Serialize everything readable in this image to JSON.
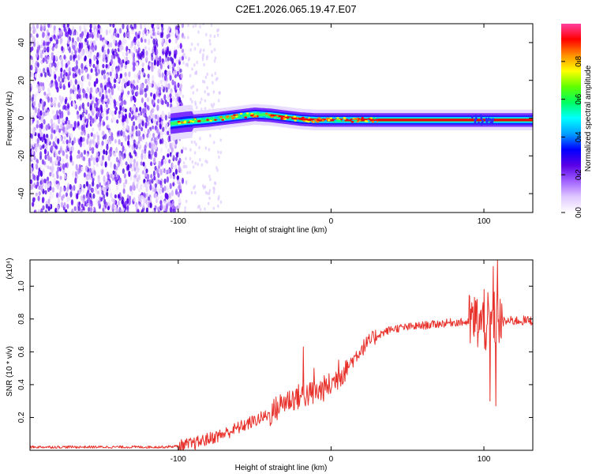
{
  "page_title": "C2E1.2026.065.19.47.E07",
  "colors": {
    "snr_line": "#e8302a",
    "ridge_core": "#e8000e",
    "axis": "#000000"
  },
  "chart_data": [
    {
      "type": "heatmap",
      "title": "C2E1.2026.065.19.47.E07",
      "xlabel": "Height of straight line (km)",
      "ylabel": "Frequency (Hz)",
      "xlim": [
        -197,
        132
      ],
      "ylim": [
        -50,
        50
      ],
      "x_ticks": [
        -100,
        0,
        100
      ],
      "x_tick_labels": [
        "-100",
        "0",
        "100"
      ],
      "y_ticks": [
        -40,
        -20,
        0,
        20,
        40
      ],
      "y_tick_labels": [
        "-40",
        "-20",
        "0",
        "20",
        "40"
      ],
      "colorbar": {
        "label": "Normalized spectral amplitude",
        "range": [
          0,
          1
        ],
        "ticks": [
          0.0,
          0.2,
          0.4,
          0.6,
          0.8
        ],
        "tick_labels": [
          "0.0",
          "0.2",
          "0.4",
          "0.6",
          "0.8"
        ],
        "stops": [
          "#ffffff",
          "#e0c8ff",
          "#a060ff",
          "#5a00e6",
          "#0000ff",
          "#00a0ff",
          "#00ffff",
          "#00ff60",
          "#60ff00",
          "#ffff00",
          "#ff9000",
          "#ff0000",
          "#ff40a0"
        ]
      },
      "ridge_frequency": {
        "x": [
          -105,
          -95,
          -80,
          -65,
          -50,
          -40,
          -30,
          -20,
          -10,
          0,
          20,
          40,
          60,
          80,
          100,
          132
        ],
        "y": [
          -3,
          -2,
          -1,
          0.5,
          2,
          1.5,
          0.5,
          -0.5,
          -1,
          -1,
          -1,
          -1,
          -1,
          -1,
          -1,
          -1
        ]
      },
      "noise_region_x": [
        -197,
        -97
      ]
    },
    {
      "type": "line",
      "xlabel": "Height of straight line (km)",
      "ylabel": "SNR (10 * v/v)",
      "scale_label": "(x10⁴)",
      "xlim": [
        -197,
        132
      ],
      "ylim": [
        0,
        1.16
      ],
      "x_ticks": [
        -100,
        0,
        100
      ],
      "x_tick_labels": [
        "-100",
        "0",
        "100"
      ],
      "y_ticks": [
        0.2,
        0.4,
        0.6,
        0.8,
        1.0
      ],
      "y_tick_labels": [
        "0.2",
        "0.4",
        "0.6",
        "0.8",
        "1.0"
      ],
      "series": [
        {
          "name": "SNR",
          "x": [
            -197,
            -150,
            -110,
            -100,
            -90,
            -80,
            -70,
            -60,
            -50,
            -40,
            -30,
            -20,
            -10,
            0,
            10,
            20,
            30,
            40,
            50,
            60,
            70,
            80,
            90,
            95,
            100,
            105,
            110,
            120,
            132
          ],
          "values": [
            0.02,
            0.02,
            0.02,
            0.025,
            0.04,
            0.07,
            0.1,
            0.14,
            0.18,
            0.22,
            0.3,
            0.33,
            0.35,
            0.4,
            0.5,
            0.62,
            0.7,
            0.74,
            0.75,
            0.76,
            0.77,
            0.78,
            0.78,
            0.79,
            0.76,
            0.8,
            0.78,
            0.79,
            0.79
          ]
        }
      ],
      "spikes": [
        {
          "x": -18,
          "value": 0.63
        },
        {
          "x": -11,
          "value": 0.5
        },
        {
          "x": 5,
          "value": 0.55
        },
        {
          "x": 100,
          "value": 0.98
        },
        {
          "x": 104,
          "value": 0.3
        },
        {
          "x": 106,
          "value": 1.12
        },
        {
          "x": 108,
          "value": 0.27
        },
        {
          "x": 109,
          "value": 1.16
        }
      ]
    }
  ]
}
